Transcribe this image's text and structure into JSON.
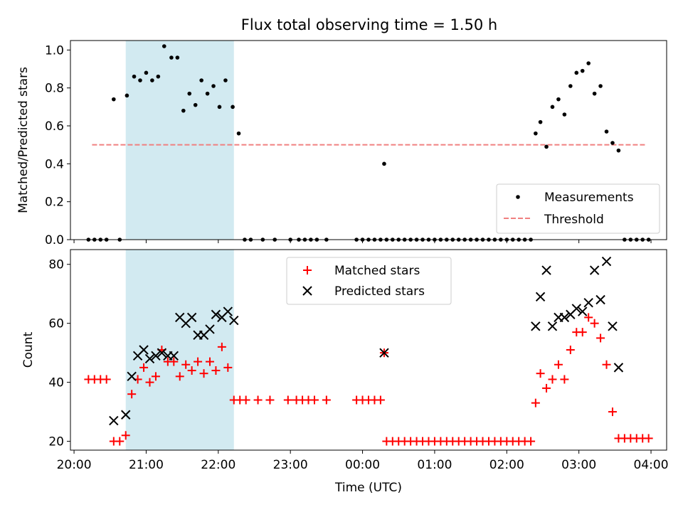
{
  "title": "Flux total observing time = 1.50 h",
  "chart_data": [
    {
      "type": "scatter",
      "panel": "top",
      "ylabel": "Matched/Predicted stars",
      "ylim": [
        0,
        1.05
      ],
      "yticks": [
        0.0,
        0.2,
        0.4,
        0.6,
        0.8,
        1.0
      ],
      "ytick_labels": [
        "0.0",
        "0.2",
        "0.4",
        "0.6",
        "0.8",
        "1.0"
      ],
      "legend": {
        "placement": "lower right",
        "entries": [
          "Measurements",
          "Threshold"
        ]
      },
      "shaded_region": {
        "x_start": "20:43",
        "x_end": "22:13",
        "color": "#add8e6"
      },
      "threshold": {
        "name": "Threshold",
        "value": 0.5,
        "x_start": "20:15",
        "x_end": "03:55",
        "color": "#f08080",
        "style": "dashed"
      },
      "series": [
        {
          "name": "Measurements",
          "color": "#000000",
          "marker": "dot",
          "points": [
            [
              "20:12",
              0
            ],
            [
              "20:17",
              0
            ],
            [
              "20:22",
              0
            ],
            [
              "20:27",
              0
            ],
            [
              "20:33",
              0.74
            ],
            [
              "20:38",
              0
            ],
            [
              "20:44",
              0.76
            ],
            [
              "20:50",
              0.86
            ],
            [
              "20:55",
              0.84
            ],
            [
              "21:00",
              0.88
            ],
            [
              "21:05",
              0.84
            ],
            [
              "21:10",
              0.86
            ],
            [
              "21:15",
              1.02
            ],
            [
              "21:21",
              0.96
            ],
            [
              "21:26",
              0.96
            ],
            [
              "21:31",
              0.68
            ],
            [
              "21:36",
              0.77
            ],
            [
              "21:41",
              0.71
            ],
            [
              "21:46",
              0.84
            ],
            [
              "21:51",
              0.77
            ],
            [
              "21:56",
              0.81
            ],
            [
              "22:01",
              0.7
            ],
            [
              "22:06",
              0.84
            ],
            [
              "22:12",
              0.7
            ],
            [
              "22:17",
              0.56
            ],
            [
              "22:22",
              0
            ],
            [
              "22:27",
              0
            ],
            [
              "22:37",
              0
            ],
            [
              "22:47",
              0
            ],
            [
              "23:00",
              0
            ],
            [
              "23:07",
              0
            ],
            [
              "23:12",
              0
            ],
            [
              "23:17",
              0
            ],
            [
              "23:22",
              0
            ],
            [
              "23:30",
              0
            ],
            [
              "23:55",
              0
            ],
            [
              "00:00",
              0
            ],
            [
              "00:05",
              0
            ],
            [
              "00:10",
              0
            ],
            [
              "00:15",
              0
            ],
            [
              "00:18",
              0.4
            ],
            [
              "00:20",
              0
            ],
            [
              "00:25",
              0
            ],
            [
              "00:30",
              0
            ],
            [
              "00:35",
              0
            ],
            [
              "00:40",
              0
            ],
            [
              "00:45",
              0
            ],
            [
              "00:50",
              0
            ],
            [
              "00:55",
              0
            ],
            [
              "01:00",
              0
            ],
            [
              "01:05",
              0
            ],
            [
              "01:10",
              0
            ],
            [
              "01:15",
              0
            ],
            [
              "01:20",
              0
            ],
            [
              "01:25",
              0
            ],
            [
              "01:30",
              0
            ],
            [
              "01:35",
              0
            ],
            [
              "01:40",
              0
            ],
            [
              "01:45",
              0
            ],
            [
              "01:50",
              0
            ],
            [
              "01:55",
              0
            ],
            [
              "02:00",
              0
            ],
            [
              "02:05",
              0
            ],
            [
              "02:10",
              0
            ],
            [
              "02:15",
              0
            ],
            [
              "02:20",
              0
            ],
            [
              "02:24",
              0.56
            ],
            [
              "02:28",
              0.62
            ],
            [
              "02:33",
              0.49
            ],
            [
              "02:38",
              0.7
            ],
            [
              "02:43",
              0.74
            ],
            [
              "02:48",
              0.66
            ],
            [
              "02:53",
              0.81
            ],
            [
              "02:58",
              0.88
            ],
            [
              "03:03",
              0.89
            ],
            [
              "03:08",
              0.93
            ],
            [
              "03:13",
              0.77
            ],
            [
              "03:18",
              0.81
            ],
            [
              "03:23",
              0.57
            ],
            [
              "03:28",
              0.51
            ],
            [
              "03:33",
              0.47
            ],
            [
              "03:38",
              0
            ],
            [
              "03:43",
              0
            ],
            [
              "03:48",
              0
            ],
            [
              "03:53",
              0
            ],
            [
              "03:58",
              0
            ]
          ]
        }
      ]
    },
    {
      "type": "scatter",
      "panel": "bottom",
      "ylabel": "Count",
      "xlabel": "Time (UTC)",
      "ylim": [
        17,
        85
      ],
      "yticks": [
        20,
        40,
        60,
        80
      ],
      "ytick_labels": [
        "20",
        "40",
        "60",
        "80"
      ],
      "xlim": [
        "19:57",
        "04:13"
      ],
      "xticks": [
        "20:00",
        "21:00",
        "22:00",
        "23:00",
        "00:00",
        "01:00",
        "02:00",
        "03:00",
        "04:00"
      ],
      "legend": {
        "placement": "upper center",
        "entries": [
          "Matched stars",
          "Predicted stars"
        ]
      },
      "shaded_region": {
        "x_start": "20:43",
        "x_end": "22:13",
        "color": "#add8e6"
      },
      "series": [
        {
          "name": "Matched stars",
          "color": "#ff0000",
          "marker": "plus",
          "points": [
            [
              "20:12",
              41
            ],
            [
              "20:17",
              41
            ],
            [
              "20:22",
              41
            ],
            [
              "20:27",
              41
            ],
            [
              "20:33",
              20
            ],
            [
              "20:38",
              20
            ],
            [
              "20:43",
              22
            ],
            [
              "20:48",
              36
            ],
            [
              "20:53",
              41
            ],
            [
              "20:58",
              45
            ],
            [
              "21:03",
              40
            ],
            [
              "21:08",
              42
            ],
            [
              "21:13",
              51
            ],
            [
              "21:18",
              47
            ],
            [
              "21:23",
              47
            ],
            [
              "21:28",
              42
            ],
            [
              "21:33",
              46
            ],
            [
              "21:38",
              44
            ],
            [
              "21:43",
              47
            ],
            [
              "21:48",
              43
            ],
            [
              "21:53",
              47
            ],
            [
              "21:58",
              44
            ],
            [
              "22:03",
              52
            ],
            [
              "22:08",
              45
            ],
            [
              "22:13",
              34
            ],
            [
              "22:18",
              34
            ],
            [
              "22:23",
              34
            ],
            [
              "22:33",
              34
            ],
            [
              "22:43",
              34
            ],
            [
              "22:58",
              34
            ],
            [
              "23:05",
              34
            ],
            [
              "23:10",
              34
            ],
            [
              "23:15",
              34
            ],
            [
              "23:20",
              34
            ],
            [
              "23:30",
              34
            ],
            [
              "23:55",
              34
            ],
            [
              "00:00",
              34
            ],
            [
              "00:05",
              34
            ],
            [
              "00:10",
              34
            ],
            [
              "00:15",
              34
            ],
            [
              "00:18",
              50
            ],
            [
              "00:20",
              20
            ],
            [
              "00:25",
              20
            ],
            [
              "00:30",
              20
            ],
            [
              "00:35",
              20
            ],
            [
              "00:40",
              20
            ],
            [
              "00:45",
              20
            ],
            [
              "00:50",
              20
            ],
            [
              "00:55",
              20
            ],
            [
              "01:00",
              20
            ],
            [
              "01:05",
              20
            ],
            [
              "01:10",
              20
            ],
            [
              "01:15",
              20
            ],
            [
              "01:20",
              20
            ],
            [
              "01:25",
              20
            ],
            [
              "01:30",
              20
            ],
            [
              "01:35",
              20
            ],
            [
              "01:40",
              20
            ],
            [
              "01:45",
              20
            ],
            [
              "01:50",
              20
            ],
            [
              "01:55",
              20
            ],
            [
              "02:00",
              20
            ],
            [
              "02:05",
              20
            ],
            [
              "02:10",
              20
            ],
            [
              "02:15",
              20
            ],
            [
              "02:20",
              20
            ],
            [
              "02:24",
              33
            ],
            [
              "02:28",
              43
            ],
            [
              "02:33",
              38
            ],
            [
              "02:38",
              41
            ],
            [
              "02:43",
              46
            ],
            [
              "02:48",
              41
            ],
            [
              "02:53",
              51
            ],
            [
              "02:58",
              57
            ],
            [
              "03:03",
              57
            ],
            [
              "03:08",
              62
            ],
            [
              "03:13",
              60
            ],
            [
              "03:18",
              55
            ],
            [
              "03:23",
              46
            ],
            [
              "03:28",
              30
            ],
            [
              "03:33",
              21
            ],
            [
              "03:38",
              21
            ],
            [
              "03:43",
              21
            ],
            [
              "03:48",
              21
            ],
            [
              "03:53",
              21
            ],
            [
              "03:58",
              21
            ]
          ]
        },
        {
          "name": "Predicted stars",
          "color": "#000000",
          "marker": "x",
          "points": [
            [
              "20:33",
              27
            ],
            [
              "20:43",
              29
            ],
            [
              "20:48",
              42
            ],
            [
              "20:53",
              49
            ],
            [
              "20:58",
              51
            ],
            [
              "21:03",
              48
            ],
            [
              "21:08",
              49
            ],
            [
              "21:13",
              50
            ],
            [
              "21:18",
              49
            ],
            [
              "21:23",
              49
            ],
            [
              "21:28",
              62
            ],
            [
              "21:33",
              60
            ],
            [
              "21:38",
              62
            ],
            [
              "21:43",
              56
            ],
            [
              "21:48",
              56
            ],
            [
              "21:53",
              58
            ],
            [
              "21:58",
              63
            ],
            [
              "22:03",
              62
            ],
            [
              "22:08",
              64
            ],
            [
              "22:13",
              61
            ],
            [
              "00:18",
              50
            ],
            [
              "02:24",
              59
            ],
            [
              "02:28",
              69
            ],
            [
              "02:33",
              78
            ],
            [
              "02:38",
              59
            ],
            [
              "02:43",
              62
            ],
            [
              "02:48",
              62
            ],
            [
              "02:53",
              63
            ],
            [
              "02:58",
              65
            ],
            [
              "03:03",
              64
            ],
            [
              "03:08",
              67
            ],
            [
              "03:13",
              78
            ],
            [
              "03:18",
              68
            ],
            [
              "03:23",
              81
            ],
            [
              "03:28",
              59
            ],
            [
              "03:33",
              45
            ]
          ]
        }
      ]
    }
  ]
}
